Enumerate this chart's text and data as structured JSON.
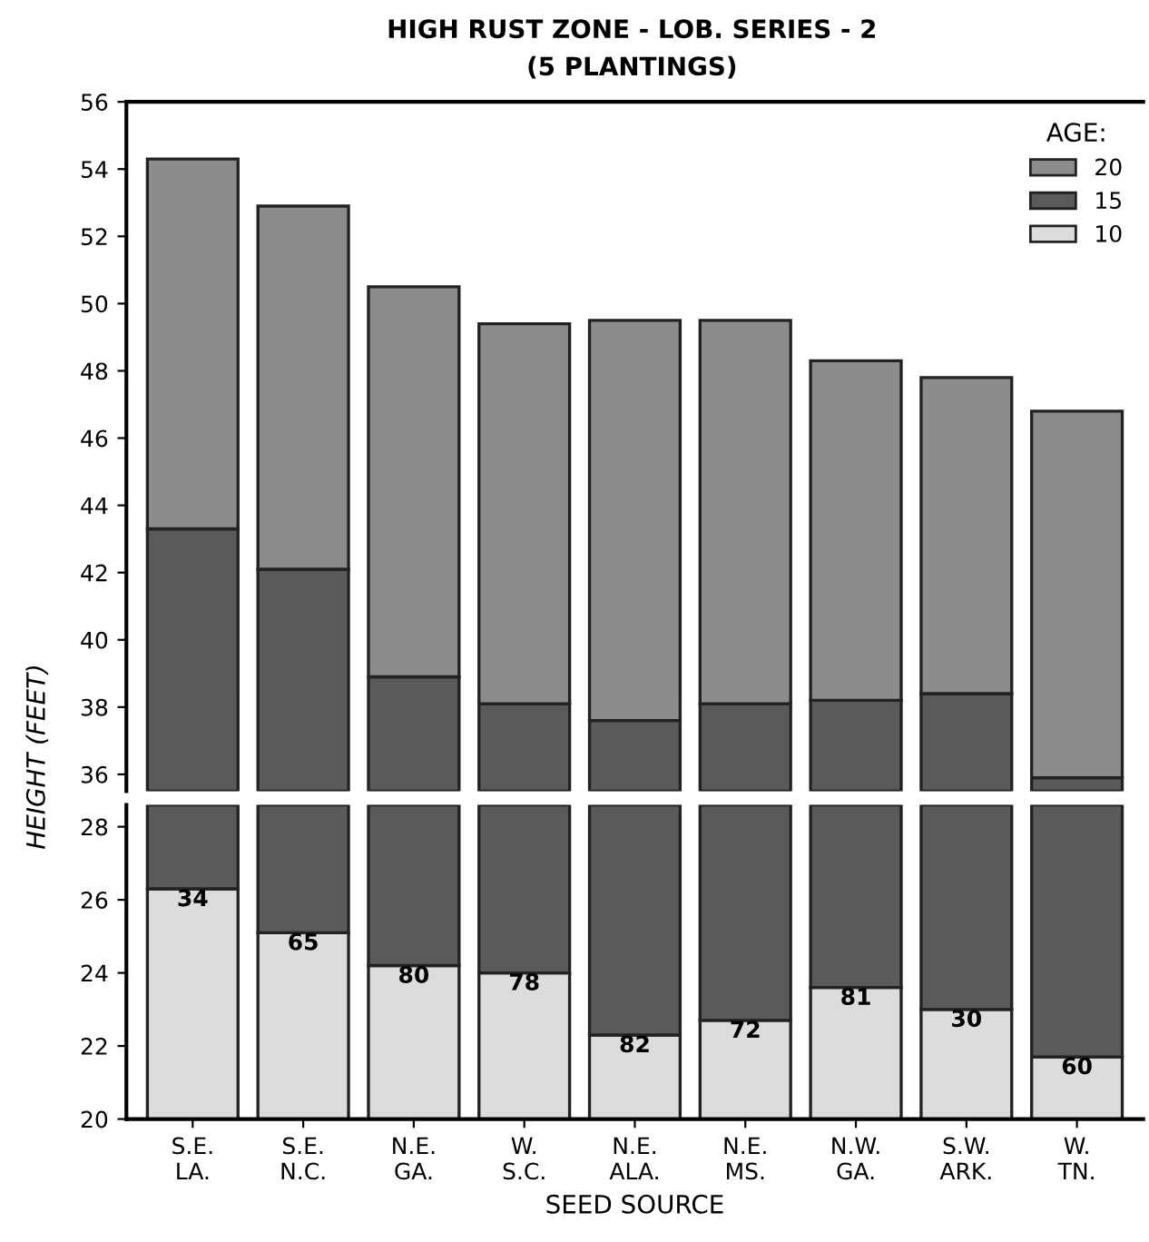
{
  "chart_data": [
    {
      "type": "bar",
      "title": "HIGH RUST ZONE - LOB. SERIES - 2",
      "subtitle": "(5 PLANTINGS)",
      "ylabel": "HEIGHT (FEET)",
      "legend_title": "AGE:",
      "legend": "top right",
      "tick_labels": "y",
      "grid": false,
      "categories": [
        null,
        null,
        null,
        null,
        null,
        null,
        null,
        null,
        null
      ],
      "series": [
        {
          "name": "10",
          "color": "#dcdcdc",
          "values": [
            null,
            null,
            null,
            null,
            null,
            null,
            null,
            null,
            null
          ]
        },
        {
          "name": "15",
          "color": "#5a5a5a",
          "base": [
            35.5,
            35.5,
            35.5,
            35.5,
            35.5,
            35.5,
            35.5,
            35.5,
            35.5
          ],
          "values": [
            7.8,
            6.6,
            3.4,
            2.6,
            2.1,
            2.6,
            2.7,
            2.9,
            0.4
          ]
        },
        {
          "name": "20",
          "color": "#8c8c8c",
          "base": [
            43.3,
            42.1,
            38.9,
            38.1,
            37.6,
            38.1,
            38.2,
            38.4,
            35.9
          ],
          "values": [
            11.0,
            10.8,
            11.6,
            11.3,
            11.9,
            11.4,
            10.1,
            9.4,
            10.9
          ]
        }
      ],
      "ylim": [
        35.5,
        56
      ],
      "yticks": [
        36,
        38,
        40,
        42,
        44,
        46,
        48,
        50,
        52,
        54,
        56
      ]
    },
    {
      "type": "bar",
      "xlabel": "SEED SOURCE",
      "grid": false,
      "categories": [
        "S.E.\nLA.",
        "S.E.\nN.C.",
        "N.E.\nGA.",
        "W.\nS.C.",
        "N.E.\nALA.",
        "N.E.\nMS.",
        "N.W.\nGA.",
        "S.W.\nARK.",
        "W.\nTN."
      ],
      "series": [
        {
          "color": "#dcdcdc",
          "base": [
            20,
            20,
            20,
            20,
            20,
            20,
            20,
            20,
            20
          ],
          "values": [
            6.3,
            5.1,
            4.2,
            4.0,
            2.3,
            2.7,
            3.6,
            3.0,
            1.7
          ]
        },
        {
          "color": "#5a5a5a",
          "base": [
            26.3,
            25.1,
            24.2,
            24.0,
            22.3,
            22.7,
            23.6,
            23.0,
            21.7
          ],
          "values": [
            2.3,
            3.5,
            4.4,
            4.6,
            6.3,
            5.9,
            5.0,
            5.6,
            6.9
          ]
        }
      ],
      "ylim": [
        20,
        28.6
      ],
      "yticks": [
        20,
        22,
        24,
        26,
        28
      ],
      "annotations": [
        "34",
        "65",
        "80",
        "78",
        "82",
        "72",
        "81",
        "30",
        "60"
      ]
    }
  ]
}
